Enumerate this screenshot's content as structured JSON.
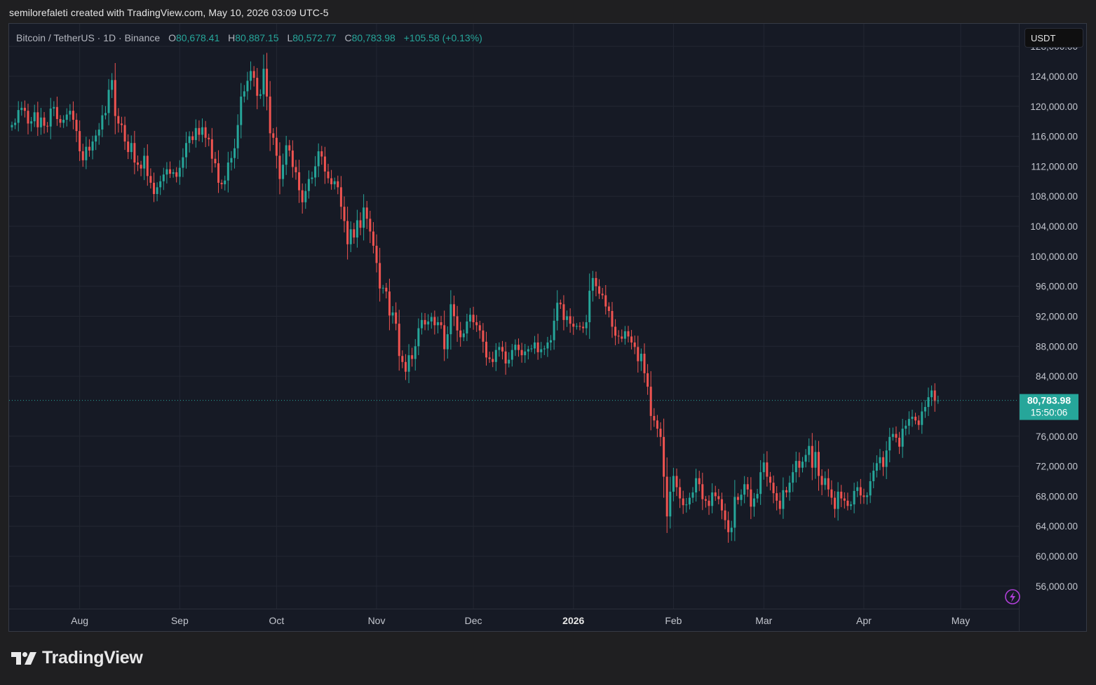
{
  "credit": "semilorefaleti created with TradingView.com, May 10, 2026 03:09 UTC-5",
  "legend": {
    "symbol": "Bitcoin / TetherUS · 1D · Binance",
    "open_label": "O",
    "open": "80,678.41",
    "high_label": "H",
    "high": "80,887.15",
    "low_label": "L",
    "low": "80,572.77",
    "close_label": "C",
    "close": "80,783.98",
    "change": "+105.58 (+0.13%)"
  },
  "currency": "USDT",
  "price_tag": {
    "price": "80,783.98",
    "countdown": "15:50:06"
  },
  "brand": {
    "name": "TradingView",
    "logo_icon": "tradingview-logo-icon"
  },
  "colors": {
    "up": "#26a69a",
    "down": "#ef5350",
    "background": "#161a25",
    "grid": "#242833",
    "accent": "#26a69a"
  },
  "chart_data": {
    "type": "candlestick",
    "title": "",
    "xlabel": "",
    "ylabel": "",
    "grid": true,
    "ylim": [
      53000,
      131000
    ],
    "y_ticks": [
      "128,000.00",
      "124,000.00",
      "120,000.00",
      "116,000.00",
      "112,000.00",
      "108,000.00",
      "104,000.00",
      "100,000.00",
      "96,000.00",
      "92,000.00",
      "88,000.00",
      "84,000.00",
      "76,000.00",
      "72,000.00",
      "68,000.00",
      "64,000.00",
      "60,000.00",
      "56,000.00"
    ],
    "x_ticks": [
      {
        "label": "Aug",
        "date": "2025-08-01"
      },
      {
        "label": "Sep",
        "date": "2025-09-01"
      },
      {
        "label": "Oct",
        "date": "2025-10-01"
      },
      {
        "label": "Nov",
        "date": "2025-11-01"
      },
      {
        "label": "Dec",
        "date": "2025-12-01"
      },
      {
        "label": "2026",
        "date": "2026-01-01",
        "bold": true
      },
      {
        "label": "Feb",
        "date": "2026-02-01"
      },
      {
        "label": "Mar",
        "date": "2026-03-01"
      },
      {
        "label": "Apr",
        "date": "2026-04-01"
      },
      {
        "label": "May",
        "date": "2026-05-01"
      }
    ],
    "start_date": "2025-07-11",
    "last_close": 80783.98,
    "closes": [
      117500,
      117800,
      119500,
      119800,
      119400,
      117700,
      118000,
      119200,
      117200,
      118500,
      117400,
      117300,
      119700,
      119900,
      118300,
      117800,
      118200,
      118900,
      119400,
      118200,
      116700,
      114000,
      112800,
      114600,
      114100,
      115300,
      116100,
      116900,
      118800,
      119100,
      122200,
      123500,
      118700,
      117700,
      117500,
      115300,
      113900,
      115100,
      112500,
      112200,
      111700,
      113400,
      110700,
      109800,
      108300,
      109200,
      110000,
      110900,
      111600,
      111000,
      111200,
      110600,
      111800,
      113200,
      115100,
      116000,
      115500,
      117100,
      116200,
      117200,
      115800,
      115600,
      113000,
      112400,
      109800,
      109600,
      110100,
      112500,
      113100,
      114400,
      117500,
      121300,
      122000,
      123400,
      124700,
      123800,
      121400,
      121600,
      125000,
      121300,
      116400,
      115800,
      113400,
      110300,
      112200,
      114800,
      114100,
      111900,
      111200,
      108800,
      107200,
      108700,
      110300,
      110500,
      112000,
      114000,
      113300,
      111300,
      110400,
      109600,
      110000,
      109200,
      106600,
      104700,
      101600,
      103600,
      102500,
      104800,
      103800,
      106500,
      105000,
      103300,
      101400,
      99100,
      95700,
      95800,
      95300,
      92100,
      92500,
      91000,
      86700,
      85900,
      84600,
      86800,
      86300,
      88000,
      90400,
      91500,
      90900,
      91300,
      91900,
      90800,
      91200,
      90800,
      87600,
      89600,
      93600,
      92000,
      90100,
      89200,
      89700,
      91300,
      92200,
      91200,
      90800,
      90100,
      88600,
      86500,
      86300,
      85900,
      87500,
      87900,
      87300,
      85700,
      86200,
      87500,
      88200,
      87500,
      86800,
      87300,
      87600,
      87700,
      88500,
      87200,
      87600,
      87700,
      88500,
      88800,
      91400,
      93800,
      93600,
      91500,
      92000,
      91000,
      90600,
      90700,
      90600,
      90400,
      91200,
      95400,
      97100,
      96000,
      95000,
      94800,
      93300,
      92700,
      90600,
      89400,
      89300,
      89000,
      90000,
      89300,
      88500,
      87900,
      86000,
      87000,
      84400,
      82600,
      78700,
      78100,
      77000,
      75900,
      70600,
      65300,
      68600,
      70700,
      69200,
      67700,
      66800,
      66900,
      67800,
      68500,
      70400,
      69600,
      67600,
      67400,
      66700,
      68500,
      68000,
      67600,
      66100,
      64800,
      63200,
      63800,
      67900,
      67500,
      68200,
      69600,
      68900,
      66600,
      67700,
      68300,
      71200,
      72500,
      70600,
      69800,
      68400,
      67400,
      66300,
      68800,
      68500,
      69800,
      71200,
      72700,
      71800,
      72600,
      73500,
      74700,
      71800,
      73900,
      70700,
      69500,
      70400,
      68900,
      67800,
      66300,
      68600,
      67700,
      67400,
      66700,
      66900,
      68700,
      69200,
      68100,
      67900,
      68100,
      70000,
      71400,
      72400,
      73200,
      71900,
      74100,
      75900,
      76300,
      75800,
      74600,
      77000,
      77400,
      78300,
      78600,
      78100,
      77500,
      79300,
      79900,
      81200,
      82100,
      80700,
      80783.98
    ]
  }
}
